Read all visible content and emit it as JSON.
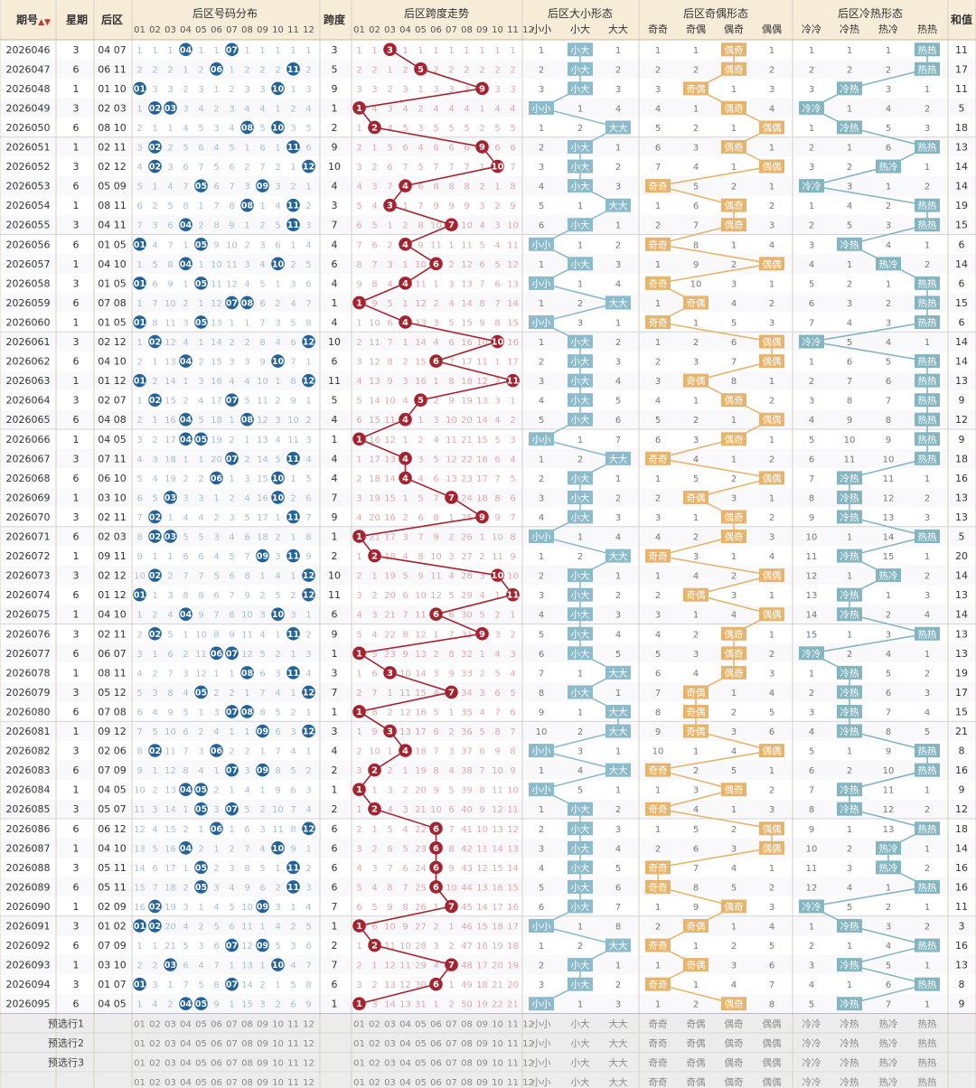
{
  "header": {
    "period": "期号",
    "weekday": "星期",
    "back": "后区",
    "dist": "后区号码分布",
    "span": "跨度",
    "spantrend": "后区跨度走势",
    "size": "后区大小形态",
    "oddeven": "后区奇偶形态",
    "coldhot": "后区冷热形态",
    "sum": "和值"
  },
  "nums": [
    "01",
    "02",
    "03",
    "04",
    "05",
    "06",
    "07",
    "08",
    "09",
    "10",
    "11",
    "12"
  ],
  "size_labels": [
    "小小",
    "小大",
    "大大"
  ],
  "oe_labels": [
    "奇奇",
    "奇偶",
    "偶奇",
    "偶偶"
  ],
  "ch_labels": [
    "冷冷",
    "冷热",
    "热冷",
    "热热"
  ],
  "footer": [
    "预选行1",
    "预选行2",
    "预选行3"
  ],
  "colors": {
    "ball": "#23639a",
    "span": "#a5232f",
    "size": "#8cbccc",
    "oe": "#e7b46e",
    "ch": "#84b6c2"
  },
  "chart_data": {
    "type": "table",
    "rows": [
      {
        "p": "2026046",
        "w": "3",
        "b": [
          4,
          7
        ]
      },
      {
        "p": "2026047",
        "w": "6",
        "b": [
          6,
          11
        ]
      },
      {
        "p": "2026048",
        "w": "1",
        "b": [
          1,
          10
        ]
      },
      {
        "p": "2026049",
        "w": "3",
        "b": [
          2,
          3
        ]
      },
      {
        "p": "2026050",
        "w": "6",
        "b": [
          8,
          10
        ]
      },
      {
        "p": "2026051",
        "w": "1",
        "b": [
          2,
          11
        ]
      },
      {
        "p": "2026052",
        "w": "3",
        "b": [
          2,
          12
        ]
      },
      {
        "p": "2026053",
        "w": "6",
        "b": [
          5,
          9
        ]
      },
      {
        "p": "2026054",
        "w": "1",
        "b": [
          8,
          11
        ]
      },
      {
        "p": "2026055",
        "w": "3",
        "b": [
          4,
          11
        ]
      },
      {
        "p": "2026056",
        "w": "6",
        "b": [
          1,
          5
        ]
      },
      {
        "p": "2026057",
        "w": "1",
        "b": [
          4,
          10
        ]
      },
      {
        "p": "2026058",
        "w": "3",
        "b": [
          1,
          5
        ]
      },
      {
        "p": "2026059",
        "w": "6",
        "b": [
          7,
          8
        ]
      },
      {
        "p": "2026060",
        "w": "1",
        "b": [
          1,
          5
        ]
      },
      {
        "p": "2026061",
        "w": "3",
        "b": [
          2,
          12
        ]
      },
      {
        "p": "2026062",
        "w": "6",
        "b": [
          4,
          10
        ]
      },
      {
        "p": "2026063",
        "w": "1",
        "b": [
          1,
          12
        ]
      },
      {
        "p": "2026064",
        "w": "3",
        "b": [
          2,
          7
        ]
      },
      {
        "p": "2026065",
        "w": "6",
        "b": [
          4,
          8
        ]
      },
      {
        "p": "2026066",
        "w": "1",
        "b": [
          4,
          5
        ]
      },
      {
        "p": "2026067",
        "w": "3",
        "b": [
          7,
          11
        ]
      },
      {
        "p": "2026068",
        "w": "6",
        "b": [
          6,
          10
        ]
      },
      {
        "p": "2026069",
        "w": "1",
        "b": [
          3,
          10
        ]
      },
      {
        "p": "2026070",
        "w": "3",
        "b": [
          2,
          11
        ]
      },
      {
        "p": "2026071",
        "w": "6",
        "b": [
          2,
          3
        ]
      },
      {
        "p": "2026072",
        "w": "1",
        "b": [
          9,
          11
        ]
      },
      {
        "p": "2026073",
        "w": "3",
        "b": [
          2,
          12
        ]
      },
      {
        "p": "2026074",
        "w": "6",
        "b": [
          1,
          12
        ]
      },
      {
        "p": "2026075",
        "w": "1",
        "b": [
          4,
          10
        ]
      },
      {
        "p": "2026076",
        "w": "3",
        "b": [
          2,
          11
        ]
      },
      {
        "p": "2026077",
        "w": "6",
        "b": [
          6,
          7
        ]
      },
      {
        "p": "2026078",
        "w": "1",
        "b": [
          8,
          11
        ]
      },
      {
        "p": "2026079",
        "w": "3",
        "b": [
          5,
          12
        ]
      },
      {
        "p": "2026080",
        "w": "6",
        "b": [
          7,
          8
        ]
      },
      {
        "p": "2026081",
        "w": "1",
        "b": [
          9,
          12
        ]
      },
      {
        "p": "2026082",
        "w": "3",
        "b": [
          2,
          6
        ]
      },
      {
        "p": "2026083",
        "w": "6",
        "b": [
          7,
          9
        ]
      },
      {
        "p": "2026084",
        "w": "1",
        "b": [
          4,
          5
        ]
      },
      {
        "p": "2026085",
        "w": "3",
        "b": [
          5,
          7
        ]
      },
      {
        "p": "2026086",
        "w": "6",
        "b": [
          6,
          12
        ]
      },
      {
        "p": "2026087",
        "w": "1",
        "b": [
          4,
          10
        ]
      },
      {
        "p": "2026088",
        "w": "3",
        "b": [
          5,
          11
        ]
      },
      {
        "p": "2026089",
        "w": "6",
        "b": [
          5,
          11
        ]
      },
      {
        "p": "2026090",
        "w": "1",
        "b": [
          2,
          9
        ]
      },
      {
        "p": "2026091",
        "w": "3",
        "b": [
          1,
          2
        ]
      },
      {
        "p": "2026092",
        "w": "6",
        "b": [
          7,
          9
        ]
      },
      {
        "p": "2026093",
        "w": "1",
        "b": [
          3,
          10
        ]
      },
      {
        "p": "2026094",
        "w": "3",
        "b": [
          1,
          7
        ]
      },
      {
        "p": "2026095",
        "w": "6",
        "b": [
          4,
          5
        ]
      }
    ],
    "ch": [
      3,
      3,
      1,
      0,
      1,
      3,
      2,
      0,
      3,
      3,
      1,
      2,
      3,
      3,
      3,
      0,
      3,
      3,
      3,
      3,
      3,
      3,
      1,
      1,
      1,
      3,
      1,
      2,
      1,
      1,
      3,
      0,
      1,
      1,
      1,
      1,
      3,
      3,
      1,
      1,
      3,
      2,
      2,
      3,
      0,
      1,
      3,
      1,
      3,
      1
    ]
  }
}
